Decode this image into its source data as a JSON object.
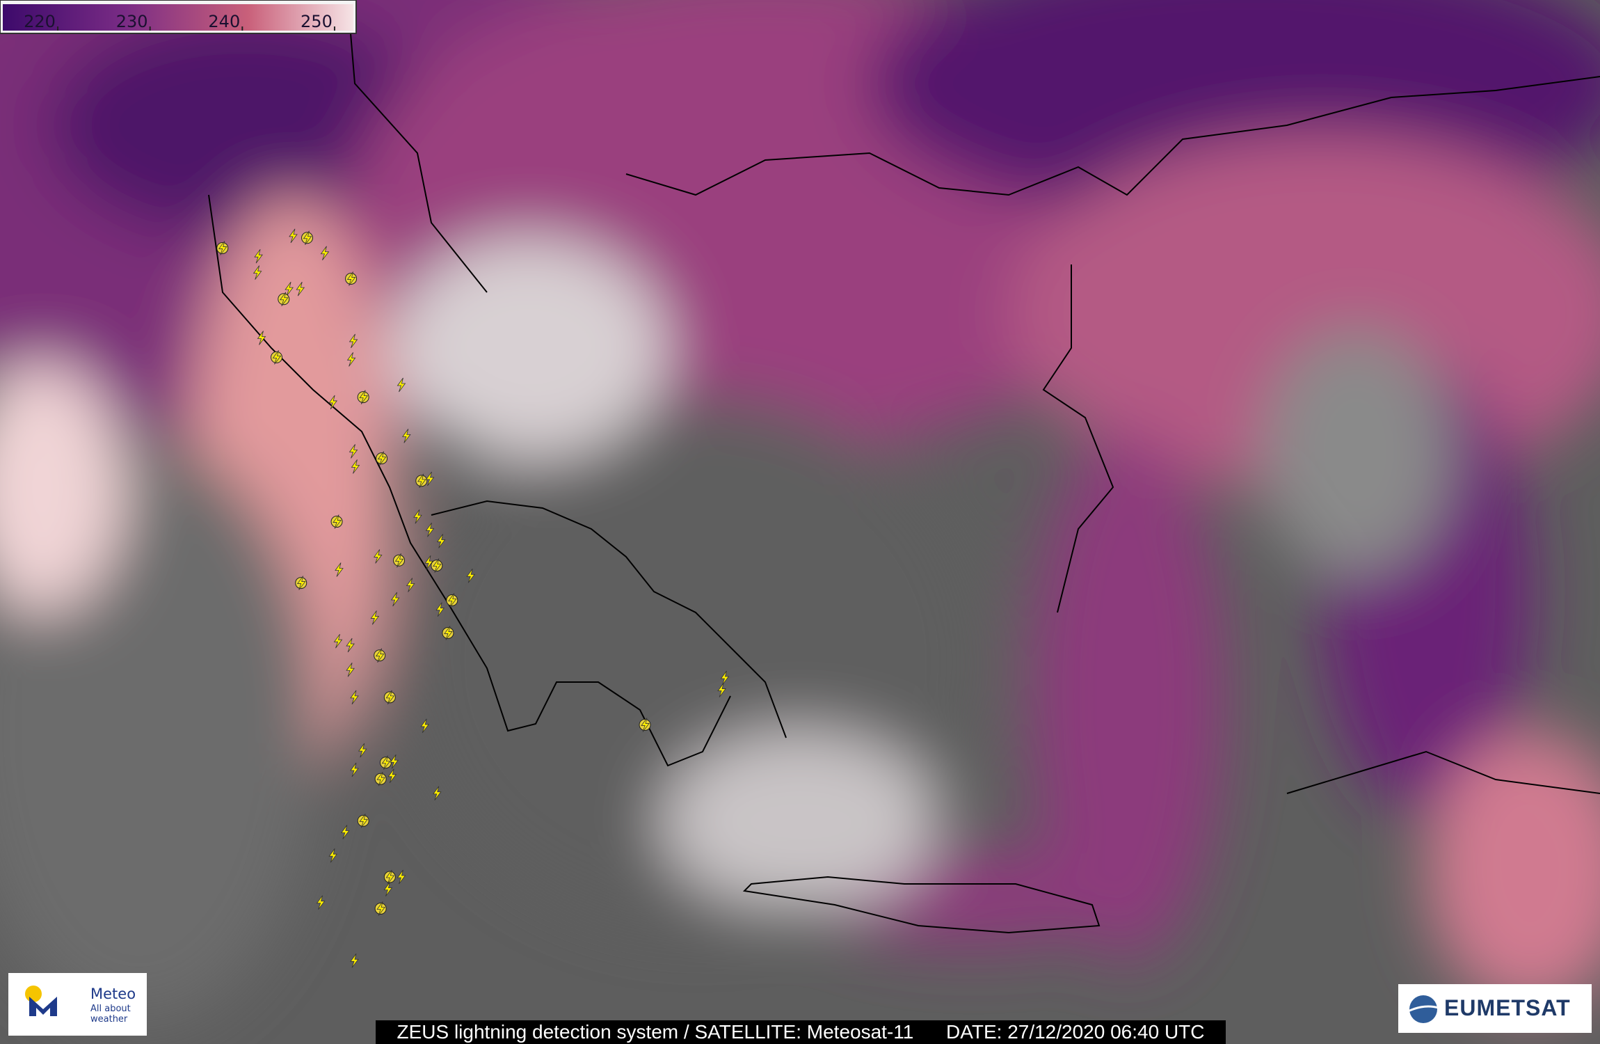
{
  "colorbar": {
    "range": [
      216,
      254
    ],
    "ticks": [
      220,
      230,
      240,
      250
    ]
  },
  "logos": {
    "meteo_name": "Meteo",
    "meteo_tagline": "All about weather",
    "eumetsat": "EUMETSAT"
  },
  "caption": {
    "source": "ZEUS lightning detection system / SATELLITE: Meteosat-11",
    "date": "DATE: 27/12/2020 06:40 UTC"
  }
}
